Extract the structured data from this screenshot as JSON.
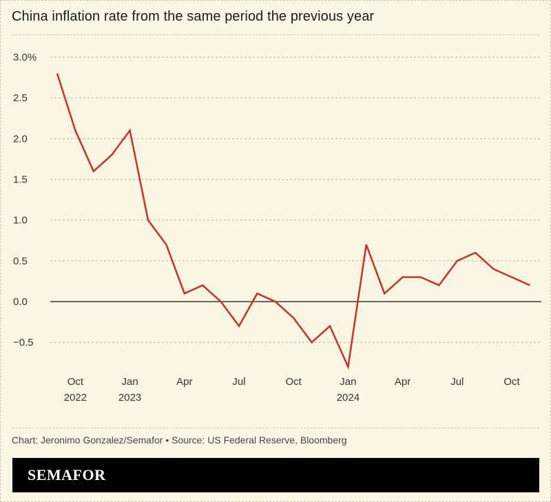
{
  "title": "China inflation rate from the same period the previous year",
  "credit": "Chart: Jeronimo Gonzalez/Semafor • Source: US Federal Reserve, Bloomberg",
  "brand": "SEMAFOR",
  "colors": {
    "background": "#fbf6e3",
    "line": "#c0392b",
    "grid": "#b5b09a",
    "zero_line": "#111111",
    "brand_bar": "#000000"
  },
  "chart_data": {
    "type": "line",
    "title": "China inflation rate from the same period the previous year",
    "ylabel": "",
    "xlabel": "",
    "ylim": [
      -0.8,
      3.0
    ],
    "yticks": [
      {
        "value": 3.0,
        "label": "3.0%"
      },
      {
        "value": 2.5,
        "label": "2.5"
      },
      {
        "value": 2.0,
        "label": "2.0"
      },
      {
        "value": 1.5,
        "label": "1.5"
      },
      {
        "value": 1.0,
        "label": "1.0"
      },
      {
        "value": 0.5,
        "label": "0.5"
      },
      {
        "value": 0.0,
        "label": "0.0"
      },
      {
        "value": -0.5,
        "label": "−0.5"
      }
    ],
    "xticks": [
      {
        "date": "2022-10",
        "line1": "Oct",
        "line2": "2022"
      },
      {
        "date": "2023-01",
        "line1": "Jan",
        "line2": "2023"
      },
      {
        "date": "2023-04",
        "line1": "Apr",
        "line2": ""
      },
      {
        "date": "2023-07",
        "line1": "Jul",
        "line2": ""
      },
      {
        "date": "2023-10",
        "line1": "Oct",
        "line2": ""
      },
      {
        "date": "2024-01",
        "line1": "Jan",
        "line2": "2024"
      },
      {
        "date": "2024-04",
        "line1": "Apr",
        "line2": ""
      },
      {
        "date": "2024-07",
        "line1": "Jul",
        "line2": ""
      },
      {
        "date": "2024-10",
        "line1": "Oct",
        "line2": ""
      }
    ],
    "grid": true,
    "legend": "none",
    "series": [
      {
        "x": [
          "2022-09",
          "2022-10",
          "2022-11",
          "2022-12",
          "2023-01",
          "2023-02",
          "2023-03",
          "2023-04",
          "2023-05",
          "2023-06",
          "2023-07",
          "2023-08",
          "2023-09",
          "2023-10",
          "2023-11",
          "2023-12",
          "2024-01",
          "2024-02",
          "2024-03",
          "2024-04",
          "2024-05",
          "2024-06",
          "2024-07",
          "2024-08",
          "2024-09",
          "2024-10",
          "2024-11"
        ],
        "values": [
          2.8,
          2.1,
          1.6,
          1.8,
          2.1,
          1.0,
          0.7,
          0.1,
          0.2,
          0.0,
          -0.3,
          0.1,
          0.0,
          -0.2,
          -0.5,
          -0.3,
          -0.8,
          0.7,
          0.1,
          0.3,
          0.3,
          0.2,
          0.5,
          0.6,
          0.4,
          0.3,
          0.2
        ]
      }
    ]
  }
}
